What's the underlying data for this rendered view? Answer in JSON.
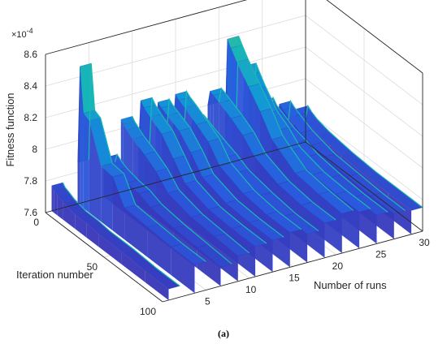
{
  "chart_data": {
    "type": "surface-3d",
    "xlabel": "Iteration number",
    "ylabel": "Number of runs",
    "zlabel": "Fitness function",
    "x_ticks": [
      "0",
      "50",
      "100"
    ],
    "y_ticks": [
      "5",
      "10",
      "15",
      "20",
      "25",
      "30"
    ],
    "z_ticks": [
      "7.6",
      "7.8",
      "8",
      "8.2",
      "8.4",
      "8.6"
    ],
    "z_multiplier": "×10",
    "z_exponent": "-4",
    "xlim": [
      0,
      100
    ],
    "ylim": [
      0,
      30
    ],
    "zlim": [
      7.6,
      8.6
    ],
    "colormap": "parula",
    "colors": {
      "low": "#3e26a8",
      "mid": "#1f96d6",
      "high": "#f9fb0e"
    },
    "iterations": [
      0,
      2,
      5,
      10,
      20,
      30,
      40,
      60,
      80,
      100
    ],
    "runs": [
      {
        "run": 2,
        "values": [
          7.76,
          7.74,
          7.73,
          7.71,
          7.69,
          7.69,
          7.68,
          7.68,
          7.67,
          7.67
        ]
      },
      {
        "run": 5,
        "values": [
          7.86,
          8.48,
          8.2,
          8.18,
          7.95,
          7.94,
          7.8,
          7.79,
          7.78,
          7.78
        ]
      },
      {
        "run": 8,
        "values": [
          7.8,
          7.86,
          7.84,
          7.82,
          7.8,
          7.79,
          7.76,
          7.74,
          7.73,
          7.72
        ]
      },
      {
        "run": 10,
        "values": [
          8.06,
          8.04,
          8.02,
          7.99,
          7.95,
          7.9,
          7.82,
          7.78,
          7.77,
          7.76
        ]
      },
      {
        "run": 12,
        "values": [
          7.85,
          8.16,
          8.13,
          8.1,
          8.05,
          7.95,
          7.85,
          7.8,
          7.79,
          7.79
        ]
      },
      {
        "run": 14,
        "values": [
          7.92,
          8.12,
          8.1,
          8.08,
          8.04,
          7.96,
          7.86,
          7.81,
          7.8,
          7.8
        ]
      },
      {
        "run": 16,
        "values": [
          7.9,
          8.14,
          8.12,
          8.1,
          8.05,
          8.0,
          7.9,
          7.84,
          7.82,
          7.82
        ]
      },
      {
        "run": 18,
        "values": [
          7.82,
          7.96,
          7.95,
          7.93,
          7.9,
          7.87,
          7.83,
          7.8,
          7.78,
          7.78
        ]
      },
      {
        "run": 20,
        "values": [
          8.0,
          8.1,
          8.09,
          8.07,
          8.03,
          7.98,
          7.9,
          7.84,
          7.82,
          7.82
        ]
      },
      {
        "run": 22,
        "values": [
          7.85,
          8.4,
          8.36,
          8.3,
          8.2,
          8.1,
          7.98,
          7.88,
          7.86,
          7.85
        ]
      },
      {
        "run": 24,
        "values": [
          7.8,
          8.2,
          8.16,
          8.1,
          8.0,
          7.95,
          7.88,
          7.84,
          7.83,
          7.83
        ]
      },
      {
        "run": 26,
        "values": [
          7.78,
          7.95,
          7.92,
          7.9,
          7.86,
          7.84,
          7.81,
          7.79,
          7.78,
          7.78
        ]
      },
      {
        "run": 28,
        "values": [
          7.76,
          7.9,
          7.88,
          7.86,
          7.82,
          7.8,
          7.78,
          7.77,
          7.76,
          7.76
        ]
      },
      {
        "run": 30,
        "values": [
          7.75,
          7.84,
          7.82,
          7.8,
          7.78,
          7.77,
          7.76,
          7.75,
          7.75,
          7.75
        ]
      }
    ],
    "grid": true
  },
  "caption": "(a)"
}
